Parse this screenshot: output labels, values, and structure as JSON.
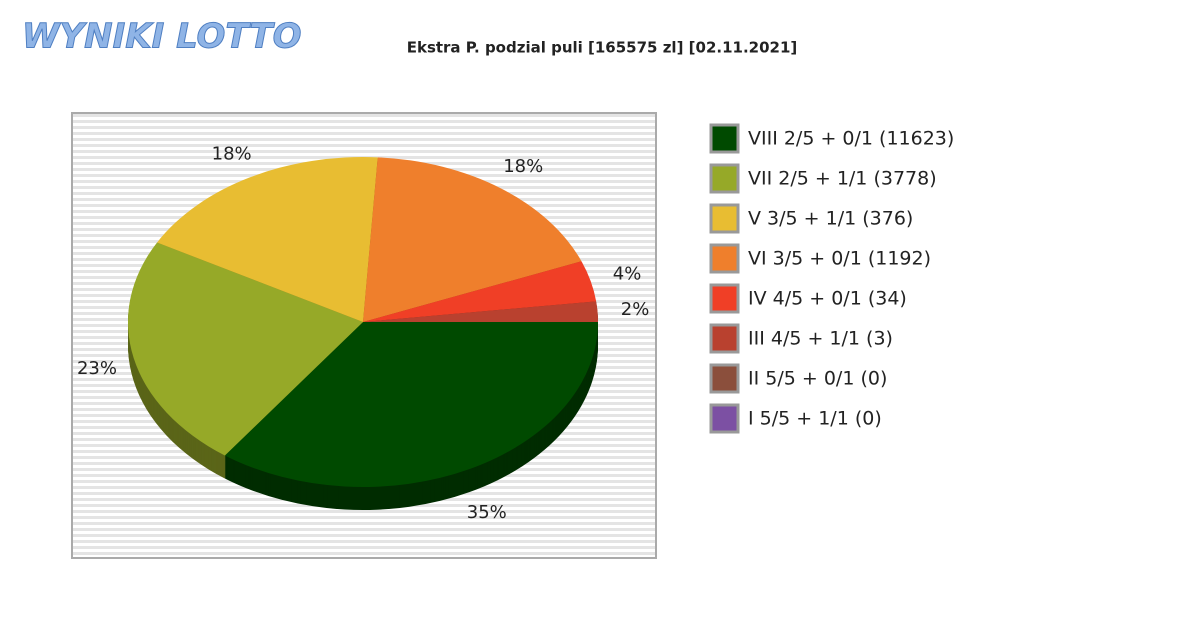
{
  "logo": "WYNIKI LOTTO",
  "chart_data": {
    "type": "pie",
    "title": "Ekstra P. podzial puli [165575 zl] [02.11.2021]",
    "categories": [
      "VIII 2/5 + 0/1 (11623)",
      "VII 2/5 + 1/1 (3778)",
      "V 3/5 + 1/1 (376)",
      "VI 3/5 + 0/1 (1192)",
      "IV 4/5 + 0/1 (34)",
      "III 4/5 + 1/1 (3)",
      "II 5/5 + 0/1 (0)",
      "I 5/5 + 1/1 (0)"
    ],
    "values": [
      35,
      23,
      18,
      18,
      4,
      2,
      0,
      0
    ],
    "value_labels": [
      "35%",
      "23%",
      "18%",
      "18%",
      "4%",
      "2%",
      null,
      null
    ],
    "colors": [
      "#004a00",
      "#96a928",
      "#e8bd32",
      "#ef7f2c",
      "#f03f26",
      "#b9412f",
      "#8b4f3c",
      "#7c50a3"
    ],
    "legend": "right"
  }
}
